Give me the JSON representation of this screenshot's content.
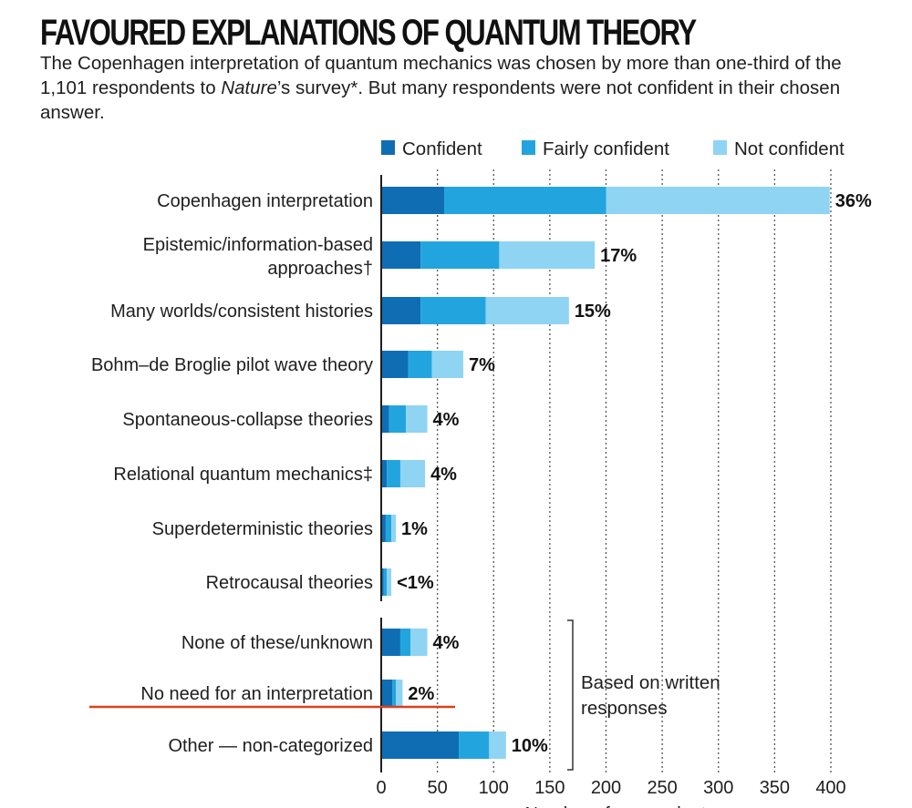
{
  "header": {
    "title": "FAVOURED EXPLANATIONS OF QUANTUM THEORY",
    "subtitle_part1": "The Copenhagen interpretation of quantum mechanics was chosen by more than one-third of the 1,101 respondents to ",
    "subtitle_italic": "Nature",
    "subtitle_part2": "’s survey*. But many respondents were not confident in their chosen answer."
  },
  "chart_data": {
    "type": "bar",
    "orientation": "horizontal",
    "stacked": true,
    "title": "FAVOURED EXPLANATIONS OF QUANTUM THEORY",
    "xlabel": "Number of respondents",
    "ylabel": "",
    "xlim": [
      0,
      400
    ],
    "x_ticks": [
      0,
      50,
      100,
      150,
      200,
      250,
      300,
      350,
      400
    ],
    "grid": "vertical dotted",
    "legend_position": "top-right",
    "categories": [
      [
        "Copenhagen interpretation"
      ],
      [
        "Epistemic/information-based",
        "approaches†"
      ],
      [
        "Many worlds/consistent histories"
      ],
      [
        "Bohm–de Broglie pilot wave theory"
      ],
      [
        "Spontaneous-collapse theories"
      ],
      [
        "Relational quantum mechanics‡"
      ],
      [
        "Superdeterministic theories"
      ],
      [
        "Retrocausal theories"
      ],
      [
        "None of these/unknown"
      ],
      [
        "No need for an interpretation"
      ],
      [
        "Other — non-categorized"
      ]
    ],
    "series": [
      {
        "name": "Confident",
        "color": "#0f6db4",
        "values": [
          56,
          35,
          35,
          24,
          7,
          5,
          4,
          2,
          17,
          10,
          69
        ]
      },
      {
        "name": "Fairly confident",
        "color": "#22a5de",
        "values": [
          144,
          70,
          58,
          21,
          15,
          12,
          5,
          3,
          9,
          3,
          27
        ]
      },
      {
        "name": "Not confident",
        "color": "#8fd4f3",
        "values": [
          199,
          85,
          74,
          28,
          19,
          22,
          4,
          4,
          15,
          6,
          15
        ]
      }
    ],
    "percent_labels": [
      "36%",
      "17%",
      "15%",
      "7%",
      "4%",
      "4%",
      "1%",
      "<1%",
      "4%",
      "2%",
      "10%"
    ],
    "bracket_note": [
      "Based on written",
      "responses"
    ],
    "bracket_group_start_index": 8
  },
  "colors": {
    "text": "#1e1e1e",
    "grid": "#555555",
    "annotation_line": "#d9411e"
  }
}
